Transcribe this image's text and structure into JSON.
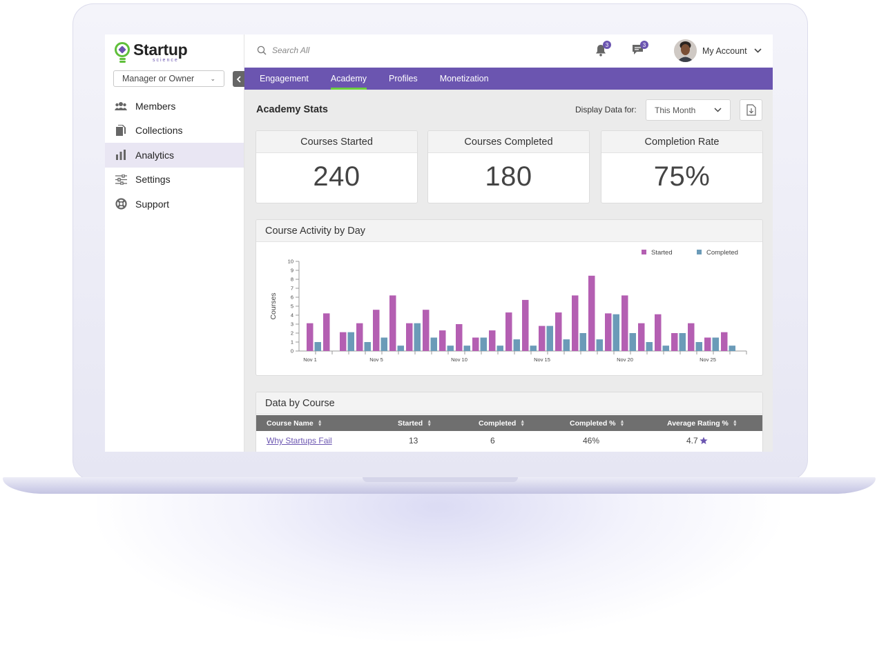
{
  "brand": {
    "name": "Startup",
    "sub": "science"
  },
  "sidebar": {
    "role": "Manager or Owner",
    "items": [
      {
        "label": "Members",
        "icon": "members-icon"
      },
      {
        "label": "Collections",
        "icon": "collections-icon"
      },
      {
        "label": "Analytics",
        "icon": "analytics-icon",
        "active": true
      },
      {
        "label": "Settings",
        "icon": "settings-icon"
      },
      {
        "label": "Support",
        "icon": "support-icon"
      }
    ]
  },
  "topbar": {
    "search_placeholder": "Search All",
    "notifications_count": "3",
    "messages_count": "3",
    "account_label": "My Account"
  },
  "tabs": [
    {
      "label": "Engagement"
    },
    {
      "label": "Academy",
      "active": true
    },
    {
      "label": "Profiles"
    },
    {
      "label": "Monetization"
    }
  ],
  "academy": {
    "title": "Academy Stats",
    "display_label": "Display Data for:",
    "period": "This Month",
    "stats": [
      {
        "label": "Courses Started",
        "value": "240"
      },
      {
        "label": "Courses Completed",
        "value": "180"
      },
      {
        "label": "Completion Rate",
        "value": "75%"
      }
    ]
  },
  "activity": {
    "title": "Course Activity by Day"
  },
  "chart_data": {
    "type": "bar",
    "title": "Course Activity by Day",
    "ylabel": "Courses",
    "xlabel": "",
    "ylim": [
      0,
      10
    ],
    "yticks": [
      0,
      1,
      2,
      3,
      4,
      5,
      6,
      7,
      8,
      9,
      10
    ],
    "categories": [
      "Nov 1",
      "Nov 2",
      "Nov 3",
      "Nov 4",
      "Nov 5",
      "Nov 6",
      "Nov 7",
      "Nov 8",
      "Nov 9",
      "Nov 10",
      "Nov 11",
      "Nov 12",
      "Nov 13",
      "Nov 14",
      "Nov 15",
      "Nov 16",
      "Nov 17",
      "Nov 18",
      "Nov 19",
      "Nov 20",
      "Nov 21",
      "Nov 22",
      "Nov 23",
      "Nov 24",
      "Nov 25",
      "Nov 26",
      "Nov 27"
    ],
    "xtick_labels": [
      "Nov 1",
      "Nov 5",
      "Nov 10",
      "Nov 15",
      "Nov 20",
      "Nov 25"
    ],
    "legend_position": "top-right",
    "series": [
      {
        "name": "Started",
        "color": "#b45fb2",
        "values": [
          3.1,
          4.2,
          2.1,
          3.1,
          4.6,
          6.2,
          3.1,
          4.6,
          2.3,
          3.0,
          1.5,
          2.3,
          4.3,
          5.7,
          2.8,
          4.3,
          6.2,
          8.4,
          4.2,
          6.2,
          3.1,
          4.1,
          2.0,
          3.1,
          1.5,
          2.1,
          0
        ]
      },
      {
        "name": "Completed",
        "color": "#6b9bb8",
        "values": [
          1.0,
          0,
          2.1,
          1.0,
          1.5,
          0.6,
          3.1,
          1.5,
          0.6,
          0.6,
          1.5,
          0.6,
          1.3,
          0.6,
          2.8,
          1.3,
          2.0,
          1.3,
          4.1,
          2.0,
          1.0,
          0.6,
          2.0,
          1.0,
          1.5,
          0.6,
          0
        ]
      }
    ]
  },
  "course_table": {
    "title": "Data by Course",
    "columns": [
      "Course Name",
      "Started",
      "Completed",
      "Completed %",
      "Average Rating %"
    ],
    "rows": [
      {
        "name": "Why Startups Fail",
        "started": "13",
        "completed": "6",
        "completed_pct": "46%",
        "rating": "4.7"
      }
    ]
  }
}
